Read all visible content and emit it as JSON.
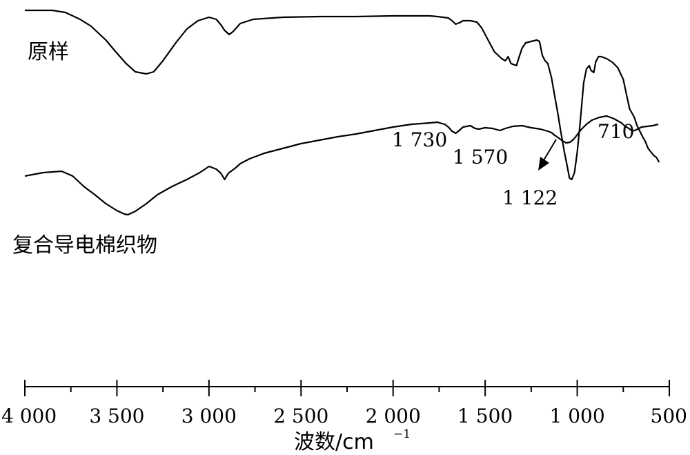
{
  "chart_data": {
    "type": "line",
    "title": "",
    "xlabel": "波数/cm",
    "xlabel_sup": "−1",
    "ylabel": "",
    "xlim": [
      4000,
      500
    ],
    "xticks": [
      {
        "value": 4000,
        "label": "4 000"
      },
      {
        "value": 3500,
        "label": "3 500"
      },
      {
        "value": 3000,
        "label": "3 000"
      },
      {
        "value": 2500,
        "label": "2 500"
      },
      {
        "value": 2000,
        "label": "2 000"
      },
      {
        "value": 1500,
        "label": "1 500"
      },
      {
        "value": 1000,
        "label": "1 000"
      },
      {
        "value": 500,
        "label": "500"
      }
    ],
    "minor_ticks_step": 250,
    "grid": false,
    "series": [
      {
        "name": "原样",
        "points": [
          [
            4000,
            95
          ],
          [
            3850,
            95
          ],
          [
            3780,
            92
          ],
          [
            3700,
            82
          ],
          [
            3640,
            72
          ],
          [
            3600,
            62
          ],
          [
            3560,
            52
          ],
          [
            3500,
            33
          ],
          [
            3450,
            18
          ],
          [
            3400,
            6
          ],
          [
            3340,
            3
          ],
          [
            3300,
            6
          ],
          [
            3250,
            22
          ],
          [
            3180,
            48
          ],
          [
            3120,
            68
          ],
          [
            3060,
            80
          ],
          [
            3000,
            85
          ],
          [
            2960,
            82
          ],
          [
            2935,
            74
          ],
          [
            2915,
            66
          ],
          [
            2890,
            60
          ],
          [
            2870,
            64
          ],
          [
            2830,
            76
          ],
          [
            2760,
            82
          ],
          [
            2600,
            85
          ],
          [
            2400,
            86
          ],
          [
            2200,
            86
          ],
          [
            2000,
            87
          ],
          [
            1900,
            87
          ],
          [
            1800,
            87
          ],
          [
            1760,
            86
          ],
          [
            1700,
            84
          ],
          [
            1680,
            80
          ],
          [
            1660,
            75
          ],
          [
            1640,
            77
          ],
          [
            1620,
            80
          ],
          [
            1580,
            80
          ],
          [
            1545,
            78
          ],
          [
            1520,
            70
          ],
          [
            1490,
            55
          ],
          [
            1450,
            35
          ],
          [
            1410,
            25
          ],
          [
            1390,
            22
          ],
          [
            1375,
            28
          ],
          [
            1360,
            18
          ],
          [
            1330,
            15
          ],
          [
            1315,
            28
          ],
          [
            1300,
            40
          ],
          [
            1280,
            48
          ],
          [
            1250,
            50
          ],
          [
            1220,
            52
          ],
          [
            1205,
            50
          ],
          [
            1190,
            30
          ],
          [
            1175,
            22
          ],
          [
            1160,
            18
          ],
          [
            1140,
            -2
          ],
          [
            1125,
            -25
          ],
          [
            1105,
            -55
          ],
          [
            1090,
            -80
          ],
          [
            1070,
            -110
          ],
          [
            1055,
            -130
          ],
          [
            1042,
            -148
          ],
          [
            1030,
            -150
          ],
          [
            1015,
            -140
          ],
          [
            1000,
            -110
          ],
          [
            985,
            -70
          ],
          [
            965,
            -10
          ],
          [
            950,
            10
          ],
          [
            935,
            15
          ],
          [
            925,
            8
          ],
          [
            910,
            5
          ],
          [
            900,
            20
          ],
          [
            885,
            28
          ],
          [
            870,
            28
          ],
          [
            840,
            25
          ],
          [
            810,
            20
          ],
          [
            780,
            12
          ],
          [
            750,
            -5
          ],
          [
            730,
            -30
          ],
          [
            715,
            -48
          ],
          [
            700,
            -55
          ],
          [
            690,
            -60
          ],
          [
            675,
            -72
          ],
          [
            660,
            -80
          ],
          [
            645,
            -88
          ],
          [
            630,
            -95
          ],
          [
            615,
            -105
          ],
          [
            600,
            -110
          ],
          [
            585,
            -115
          ],
          [
            570,
            -118
          ],
          [
            555,
            -125
          ]
        ]
      },
      {
        "name": "复合导电棉织物",
        "points": [
          [
            4000,
            -145
          ],
          [
            3900,
            -140
          ],
          [
            3800,
            -138
          ],
          [
            3740,
            -145
          ],
          [
            3680,
            -160
          ],
          [
            3620,
            -172
          ],
          [
            3560,
            -185
          ],
          [
            3500,
            -195
          ],
          [
            3460,
            -200
          ],
          [
            3440,
            -201
          ],
          [
            3400,
            -196
          ],
          [
            3340,
            -185
          ],
          [
            3280,
            -172
          ],
          [
            3200,
            -160
          ],
          [
            3120,
            -150
          ],
          [
            3050,
            -140
          ],
          [
            3000,
            -131
          ],
          [
            2960,
            -135
          ],
          [
            2935,
            -141
          ],
          [
            2915,
            -150
          ],
          [
            2895,
            -141
          ],
          [
            2875,
            -137
          ],
          [
            2855,
            -133
          ],
          [
            2830,
            -127
          ],
          [
            2780,
            -120
          ],
          [
            2700,
            -112
          ],
          [
            2600,
            -105
          ],
          [
            2500,
            -98
          ],
          [
            2400,
            -93
          ],
          [
            2300,
            -88
          ],
          [
            2200,
            -84
          ],
          [
            2100,
            -79
          ],
          [
            2000,
            -74
          ],
          [
            1900,
            -70
          ],
          [
            1800,
            -68
          ],
          [
            1760,
            -67
          ],
          [
            1720,
            -70
          ],
          [
            1700,
            -74
          ],
          [
            1680,
            -80
          ],
          [
            1660,
            -83
          ],
          [
            1645,
            -80
          ],
          [
            1620,
            -74
          ],
          [
            1580,
            -72
          ],
          [
            1555,
            -76
          ],
          [
            1535,
            -77
          ],
          [
            1500,
            -75
          ],
          [
            1460,
            -76
          ],
          [
            1420,
            -79
          ],
          [
            1390,
            -76
          ],
          [
            1350,
            -73
          ],
          [
            1300,
            -72
          ],
          [
            1250,
            -75
          ],
          [
            1200,
            -77
          ],
          [
            1160,
            -80
          ],
          [
            1140,
            -82
          ],
          [
            1122,
            -86
          ],
          [
            1100,
            -90
          ],
          [
            1080,
            -94
          ],
          [
            1060,
            -97
          ],
          [
            1040,
            -96
          ],
          [
            1020,
            -92
          ],
          [
            1000,
            -85
          ],
          [
            980,
            -78
          ],
          [
            950,
            -70
          ],
          [
            920,
            -64
          ],
          [
            880,
            -60
          ],
          [
            840,
            -58
          ],
          [
            800,
            -62
          ],
          [
            760,
            -68
          ],
          [
            740,
            -73
          ],
          [
            720,
            -76
          ],
          [
            700,
            -80
          ],
          [
            680,
            -78
          ],
          [
            650,
            -74
          ],
          [
            620,
            -73
          ],
          [
            590,
            -72
          ],
          [
            560,
            -70
          ]
        ]
      }
    ],
    "annotations": [
      {
        "text": "1 730",
        "x": 1730
      },
      {
        "text": "1 570",
        "x": 1570
      },
      {
        "text": "1 122",
        "x": 1122
      },
      {
        "text": "710",
        "x": 710
      }
    ]
  }
}
